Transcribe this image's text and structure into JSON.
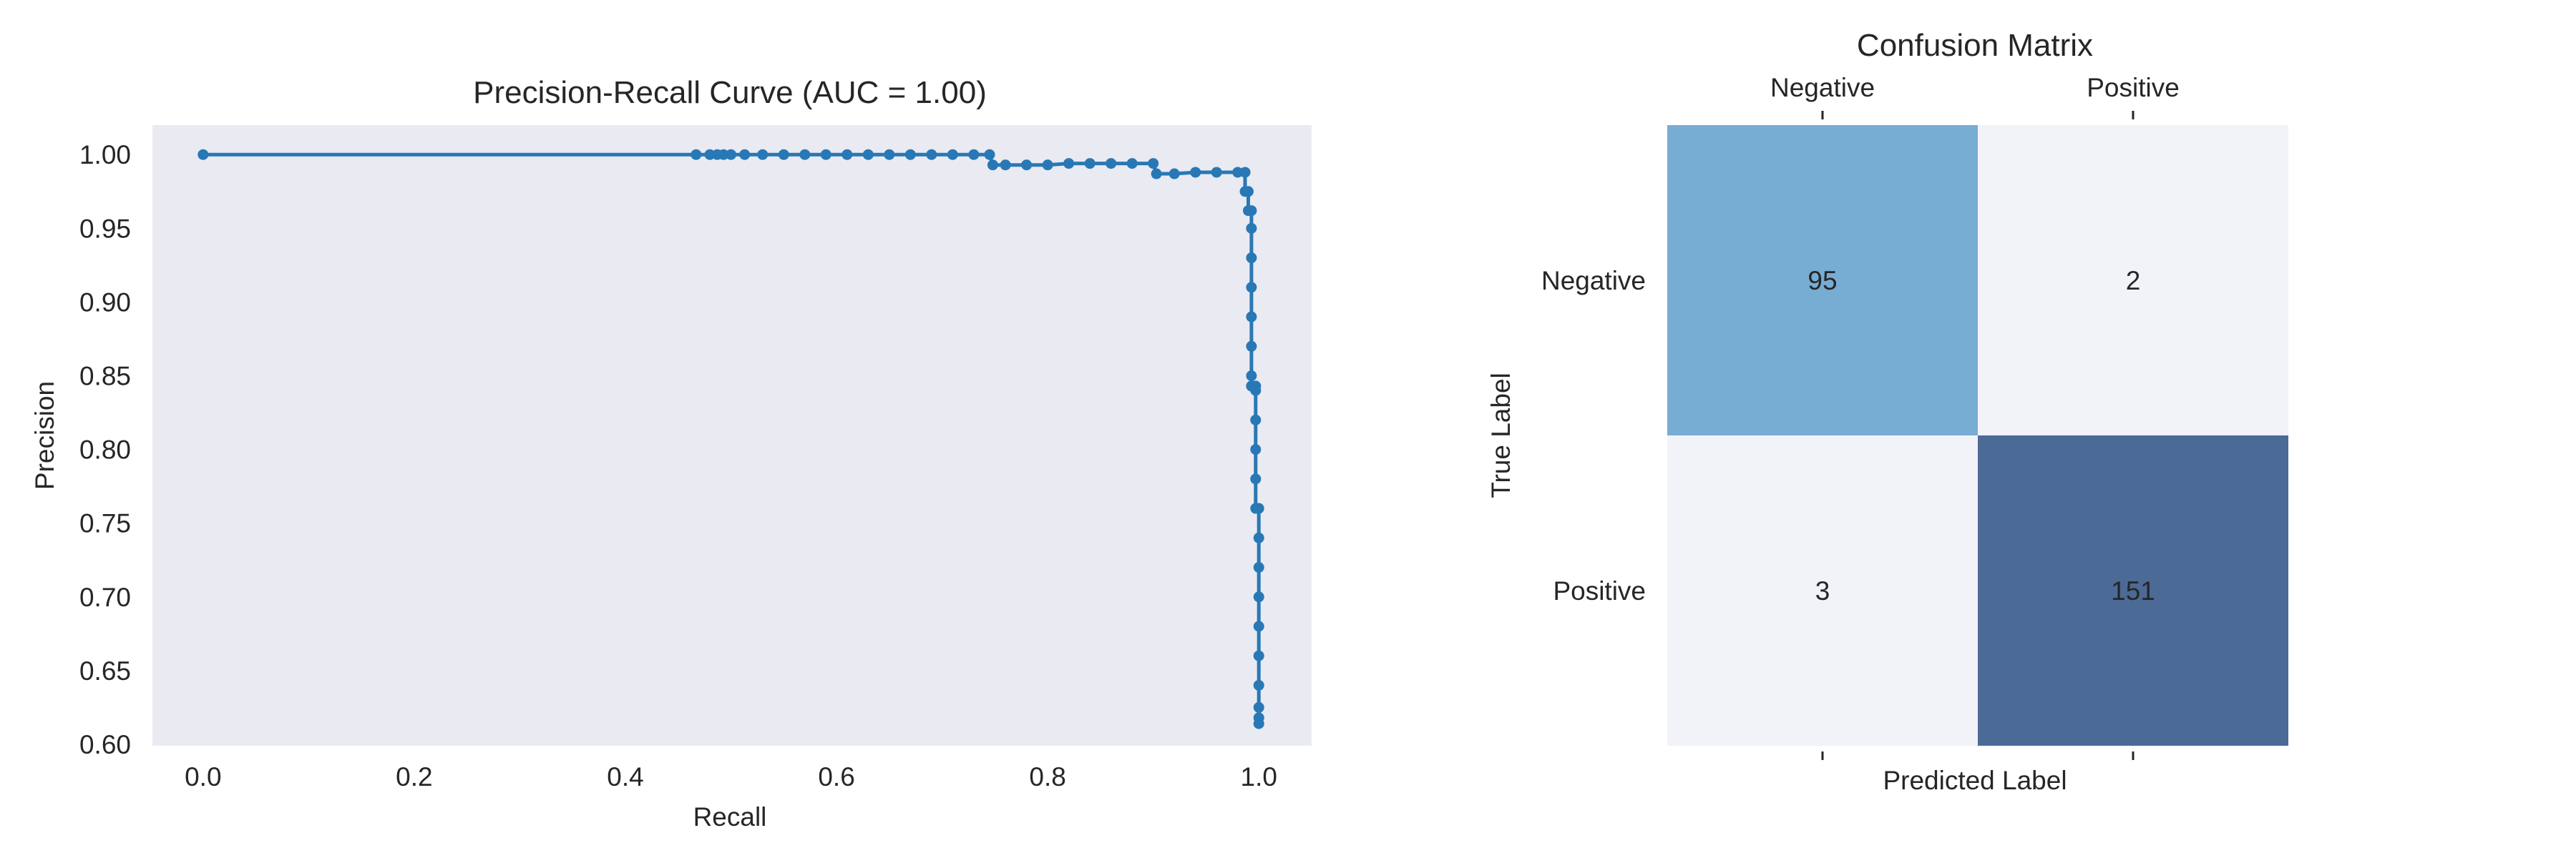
{
  "figure": {
    "background": "#ffffff"
  },
  "chart_data": [
    {
      "type": "line",
      "title": "Precision-Recall Curve (AUC = 1.00)",
      "xlabel": "Recall",
      "ylabel": "Precision",
      "xlim": [
        -0.048,
        1.05
      ],
      "ylim": [
        0.599,
        1.02
      ],
      "xticks": [
        0.0,
        0.2,
        0.4,
        0.6,
        0.8,
        1.0
      ],
      "xtick_labels": [
        "0.0",
        "0.2",
        "0.4",
        "0.6",
        "0.8",
        "1.0"
      ],
      "yticks": [
        0.6,
        0.65,
        0.7,
        0.75,
        0.8,
        0.85,
        0.9,
        0.95,
        1.0
      ],
      "ytick_labels": [
        "0.60",
        "0.65",
        "0.70",
        "0.75",
        "0.80",
        "0.85",
        "0.90",
        "0.95",
        "1.00"
      ],
      "grid": false,
      "plot_background": "#eaeaf2",
      "series": [
        {
          "color": "#2878b5",
          "marker": "circle",
          "x": [
            0.0,
            0.467,
            0.48,
            0.487,
            0.493,
            0.5,
            0.513,
            0.53,
            0.55,
            0.57,
            0.59,
            0.61,
            0.63,
            0.65,
            0.67,
            0.69,
            0.71,
            0.73,
            0.745,
            0.748,
            0.76,
            0.78,
            0.8,
            0.82,
            0.84,
            0.86,
            0.88,
            0.9,
            0.903,
            0.92,
            0.94,
            0.96,
            0.98,
            0.987,
            0.987,
            0.99,
            0.99,
            0.993,
            0.993,
            0.993,
            0.993,
            0.993,
            0.993,
            0.993,
            0.993,
            0.993,
            0.997,
            0.997,
            0.997,
            0.997,
            0.997,
            0.997,
            1.0,
            1.0,
            1.0,
            1.0,
            1.0,
            1.0,
            1.0,
            1.0,
            1.0,
            1.0
          ],
          "y": [
            1.0,
            1.0,
            1.0,
            1.0,
            1.0,
            1.0,
            1.0,
            1.0,
            1.0,
            1.0,
            1.0,
            1.0,
            1.0,
            1.0,
            1.0,
            1.0,
            1.0,
            1.0,
            1.0,
            0.993,
            0.993,
            0.993,
            0.993,
            0.994,
            0.994,
            0.994,
            0.994,
            0.994,
            0.987,
            0.987,
            0.988,
            0.988,
            0.988,
            0.988,
            0.975,
            0.975,
            0.962,
            0.962,
            0.95,
            0.93,
            0.91,
            0.89,
            0.87,
            0.85,
            0.843,
            0.843,
            0.843,
            0.84,
            0.82,
            0.8,
            0.78,
            0.76,
            0.76,
            0.74,
            0.72,
            0.7,
            0.68,
            0.66,
            0.64,
            0.625,
            0.618,
            0.614
          ]
        }
      ]
    },
    {
      "type": "heatmap",
      "title": "Confusion Matrix",
      "xlabel": "Predicted Label",
      "ylabel": "True Label",
      "col_labels": [
        "Negative",
        "Positive"
      ],
      "row_labels": [
        "Negative",
        "Positive"
      ],
      "values": [
        [
          95,
          2
        ],
        [
          3,
          151
        ]
      ],
      "annotations": [
        [
          "95",
          "2"
        ],
        [
          "3",
          "151"
        ]
      ],
      "colors": [
        [
          "#77acd3",
          "#f1f3f9"
        ],
        [
          "#f1f3f9",
          "#4c6a96"
        ]
      ]
    }
  ]
}
